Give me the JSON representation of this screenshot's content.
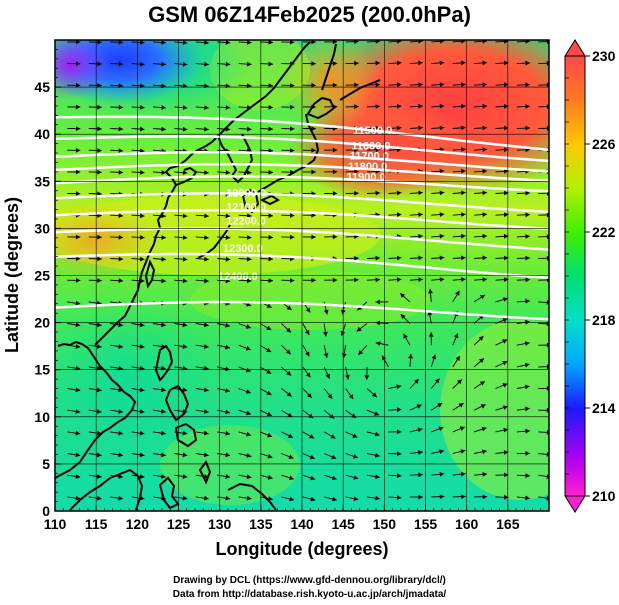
{
  "title": "GSM 06Z14Feb2025 (200.0hPa)",
  "credits": [
    "Drawing by DCL (https://www.gfd-dennou.org/library/dcl/)",
    "Data from http://database.rish.kyoto-u.ac.jp/arch/jmadata/"
  ],
  "colors": {
    "background": "#ffffff",
    "coast": "#000000",
    "contour": "#ffffff",
    "arrow": "#000000"
  },
  "chart_data": {
    "type": "map",
    "variable": "temperature shading with geopotential height contours and wind streamlines",
    "xlabel": "Longitude (degrees)",
    "ylabel": "Latitude  (degrees)",
    "xlim": [
      110,
      170
    ],
    "ylim": [
      0,
      50
    ],
    "xticks": [
      110,
      115,
      120,
      125,
      130,
      135,
      140,
      145,
      150,
      155,
      160,
      165
    ],
    "yticks": [
      0,
      5,
      10,
      15,
      20,
      25,
      30,
      35,
      40,
      45
    ],
    "colorbar": {
      "min": 210,
      "max": 230,
      "ticks": [
        210,
        214,
        218,
        222,
        226,
        230
      ]
    },
    "height_contours": [
      {
        "level": "11500.0",
        "lat_w": 41.8,
        "lat_e": 39.0,
        "label_lon": 146.2,
        "label_lat": 40.0
      },
      {
        "level": "11600.0",
        "lat_w": 39.5,
        "lat_e": 37.8,
        "label_lon": 146.0,
        "label_lat": 38.4
      },
      {
        "level": "11700.0",
        "lat_w": 37.6,
        "lat_e": 36.7,
        "label_lon": 145.8,
        "label_lat": 37.3
      },
      {
        "level": "11800.0",
        "lat_w": 36.2,
        "lat_e": 35.7,
        "label_lon": 145.6,
        "label_lat": 36.2
      },
      {
        "level": "11900.0",
        "lat_w": 34.8,
        "lat_e": 34.6,
        "label_lon": 145.4,
        "label_lat": 35.1
      },
      {
        "level": "12000.0",
        "lat_w": 33.2,
        "lat_e": 32.4,
        "label_lon": 130.8,
        "label_lat": 33.4
      },
      {
        "level": "12100.0",
        "lat_w": 31.4,
        "lat_e": 30.6,
        "label_lon": 130.8,
        "label_lat": 31.9
      },
      {
        "level": "12200.0",
        "lat_w": 29.6,
        "lat_e": 28.4,
        "label_lon": 130.8,
        "label_lat": 30.4
      },
      {
        "level": "12300.0",
        "lat_w": 27.0,
        "lat_e": 25.4,
        "label_lon": 130.4,
        "label_lat": 27.5
      },
      {
        "level": "12400.0",
        "lat_w": 21.6,
        "lat_e": 21.0,
        "label_lon": 129.8,
        "label_lat": 24.5
      }
    ]
  }
}
